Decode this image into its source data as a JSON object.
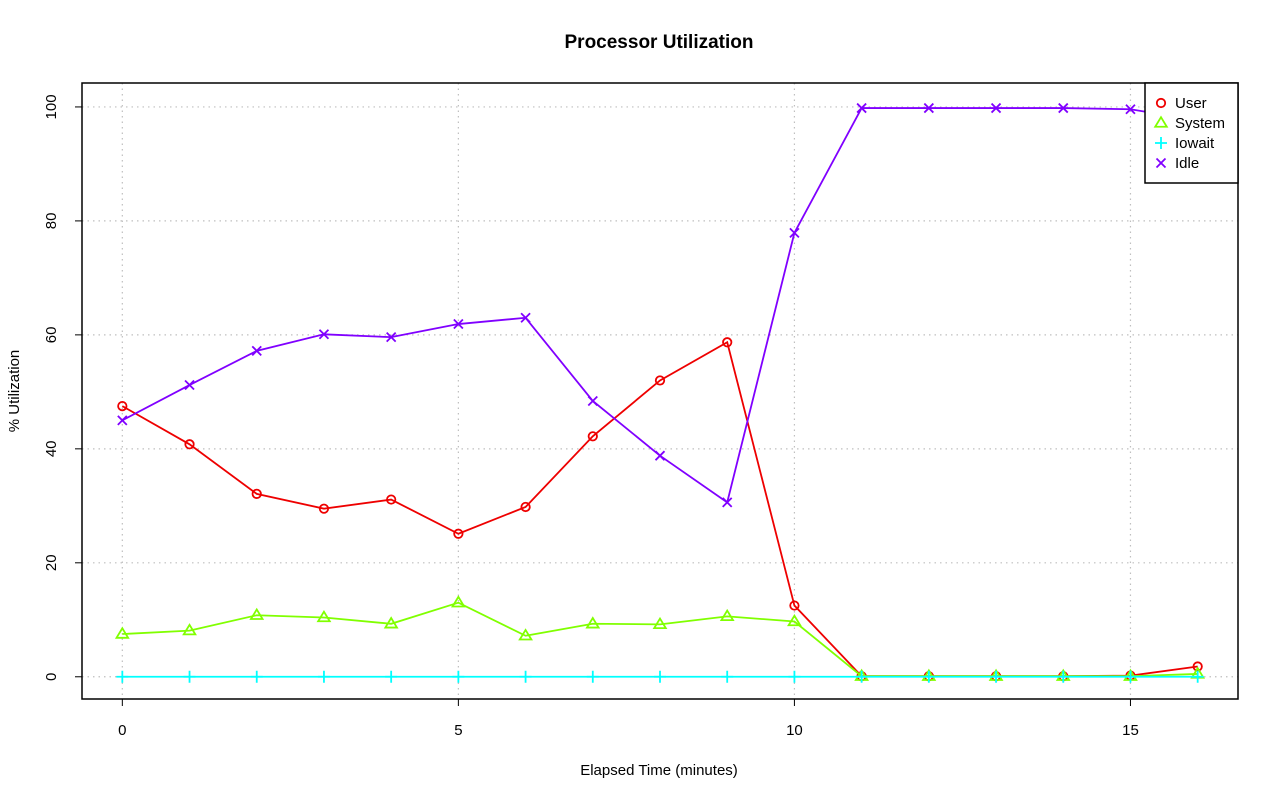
{
  "chart_data": {
    "type": "line",
    "title": "Processor Utilization",
    "xlabel": "Elapsed Time (minutes)",
    "ylabel": "% Utilization",
    "xlim": [
      -0.6,
      16.6
    ],
    "ylim": [
      -3.9,
      104.2
    ],
    "x_ticks": [
      0,
      5,
      10,
      15
    ],
    "y_ticks": [
      0,
      20,
      40,
      60,
      80,
      100
    ],
    "grid": true,
    "legend_position": "top-right",
    "x": [
      0,
      1,
      2,
      3,
      4,
      5,
      6,
      7,
      8,
      9,
      10,
      11,
      12,
      13,
      14,
      15,
      16
    ],
    "series": [
      {
        "name": "User",
        "color": "#ee0000",
        "marker": "circle",
        "values": [
          47.5,
          40.8,
          32.1,
          29.5,
          31.1,
          25.1,
          29.8,
          42.2,
          52.0,
          58.7,
          12.5,
          0.1,
          0.1,
          0.1,
          0.1,
          0.2,
          1.8
        ]
      },
      {
        "name": "System",
        "color": "#80ff00",
        "marker": "triangle",
        "values": [
          7.5,
          8.1,
          10.8,
          10.4,
          9.3,
          13.0,
          7.2,
          9.3,
          9.2,
          10.6,
          9.7,
          0.1,
          0.1,
          0.1,
          0.1,
          0.1,
          0.5
        ]
      },
      {
        "name": "Iowait",
        "color": "#00ffff",
        "marker": "plus",
        "values": [
          0,
          0,
          0,
          0,
          0,
          0,
          0,
          0,
          0,
          0,
          0,
          0,
          0,
          0,
          0,
          0,
          0
        ]
      },
      {
        "name": "Idle",
        "color": "#8000ff",
        "marker": "x",
        "values": [
          45.0,
          51.2,
          57.2,
          60.1,
          59.6,
          61.9,
          63.0,
          48.4,
          38.8,
          30.6,
          77.9,
          99.8,
          99.8,
          99.8,
          99.8,
          99.6,
          97.6
        ]
      }
    ]
  }
}
